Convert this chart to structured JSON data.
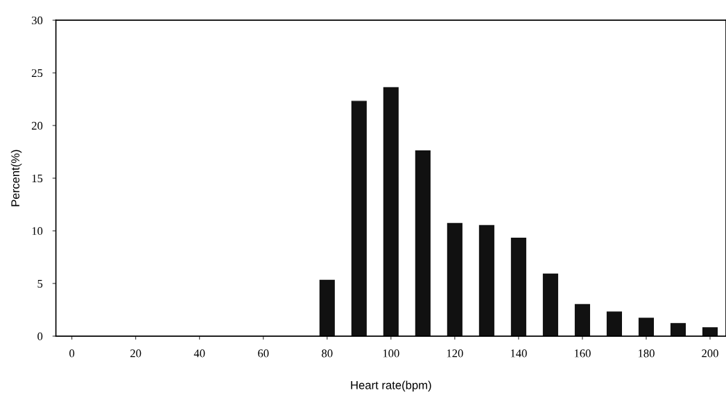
{
  "chart_data": {
    "type": "bar",
    "xlabel": "Heart rate(bpm)",
    "ylabel": "Percent(%)",
    "x": [
      80,
      90,
      100,
      110,
      120,
      130,
      140,
      150,
      160,
      170,
      180,
      190,
      200
    ],
    "values": [
      5.3,
      22.3,
      23.6,
      17.6,
      10.7,
      10.5,
      9.3,
      5.9,
      3.0,
      2.3,
      1.7,
      1.2,
      0.8
    ],
    "color": "#111111",
    "xlim": [
      -5,
      205
    ],
    "ylim": [
      0,
      30
    ],
    "xticks": [
      0,
      20,
      40,
      60,
      80,
      100,
      120,
      140,
      160,
      180,
      200
    ],
    "yticks": [
      0,
      5,
      10,
      15,
      20,
      25,
      30
    ],
    "grid": false
  }
}
